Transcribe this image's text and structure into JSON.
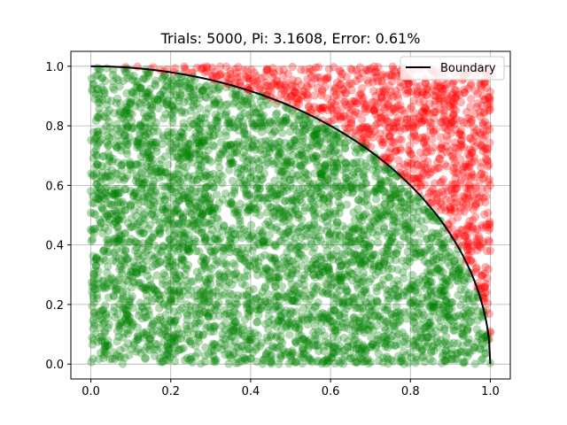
{
  "chart_data": {
    "type": "scatter",
    "title": "Trials: 5000, Pi: 3.1608, Error: 0.61%",
    "xlabel": "",
    "ylabel": "",
    "xlim": [
      -0.05,
      1.05
    ],
    "ylim": [
      -0.05,
      1.05
    ],
    "xticks": [
      "0.0",
      "0.2",
      "0.4",
      "0.6",
      "0.8",
      "1.0"
    ],
    "yticks": [
      "0.0",
      "0.2",
      "0.4",
      "0.6",
      "0.8",
      "1.0"
    ],
    "grid": true,
    "legend": {
      "placement": "top-right",
      "entries": [
        "Boundary"
      ]
    },
    "trials": 5000,
    "pi_estimate": 3.1608,
    "error_percent": 0.61,
    "inside_color": "#008000",
    "outside_color": "#ff0000",
    "point_alpha": 0.3,
    "boundary": {
      "name": "Boundary",
      "color": "#000000",
      "equation": "y = sqrt(1 - x^2)",
      "x_range": [
        0,
        1
      ]
    }
  }
}
